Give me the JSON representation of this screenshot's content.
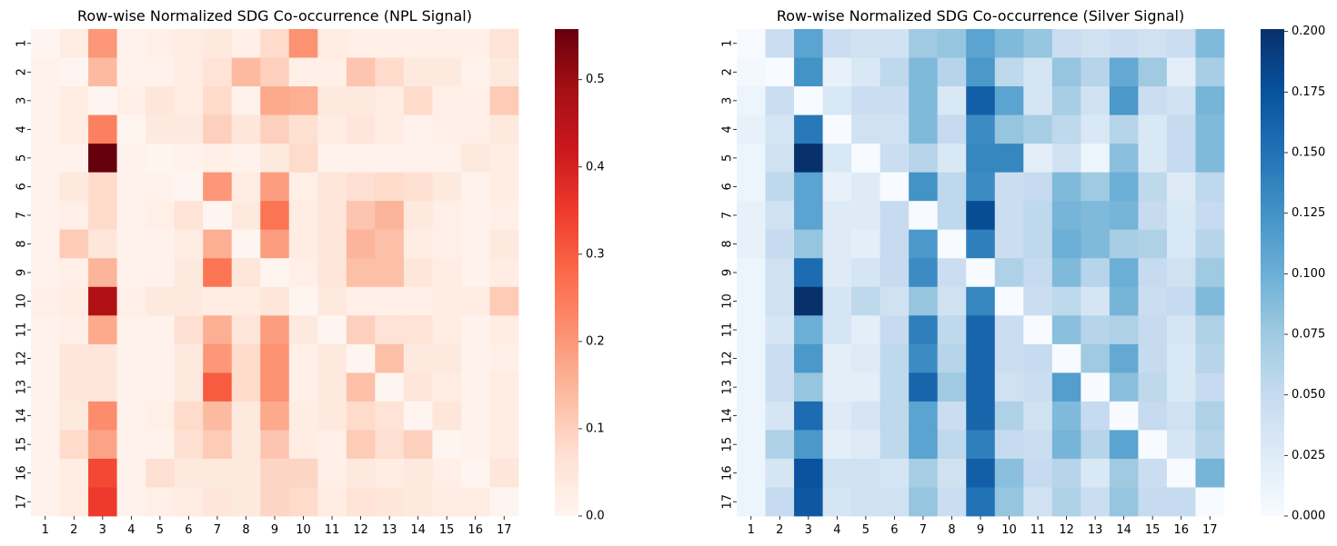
{
  "chart_data": [
    {
      "type": "heatmap",
      "title": "Row-wise Normalized SDG Co-occurrence (NPL Signal)",
      "colormap": "Reds",
      "x_labels": [
        "1",
        "2",
        "3",
        "4",
        "5",
        "6",
        "7",
        "8",
        "9",
        "10",
        "11",
        "12",
        "13",
        "14",
        "15",
        "16",
        "17"
      ],
      "y_labels": [
        "1",
        "2",
        "3",
        "4",
        "5",
        "6",
        "7",
        "8",
        "9",
        "10",
        "11",
        "12",
        "13",
        "14",
        "15",
        "16",
        "17"
      ],
      "vmin": 0.0,
      "vmax": 0.558,
      "colorbar_ticks": [
        0.0,
        0.1,
        0.2,
        0.3,
        0.4,
        0.5
      ],
      "colorbar_tick_labels": [
        "0.0",
        "0.1",
        "0.2",
        "0.3",
        "0.4",
        "0.5"
      ],
      "values": [
        [
          0.0,
          0.03,
          0.2,
          0.01,
          0.02,
          0.03,
          0.04,
          0.02,
          0.08,
          0.21,
          0.03,
          0.02,
          0.02,
          0.02,
          0.02,
          0.02,
          0.06
        ],
        [
          0.01,
          0.0,
          0.14,
          0.01,
          0.01,
          0.03,
          0.06,
          0.14,
          0.1,
          0.02,
          0.02,
          0.12,
          0.08,
          0.04,
          0.04,
          0.01,
          0.04
        ],
        [
          0.01,
          0.03,
          0.0,
          0.02,
          0.05,
          0.03,
          0.08,
          0.01,
          0.17,
          0.16,
          0.04,
          0.04,
          0.03,
          0.08,
          0.02,
          0.02,
          0.11
        ],
        [
          0.01,
          0.03,
          0.24,
          0.0,
          0.04,
          0.04,
          0.1,
          0.05,
          0.1,
          0.07,
          0.03,
          0.05,
          0.03,
          0.01,
          0.02,
          0.02,
          0.04
        ],
        [
          0.01,
          0.01,
          0.558,
          0.01,
          0.0,
          0.01,
          0.02,
          0.01,
          0.04,
          0.08,
          0.01,
          0.01,
          0.01,
          0.01,
          0.01,
          0.04,
          0.03
        ],
        [
          0.01,
          0.04,
          0.08,
          0.01,
          0.01,
          0.0,
          0.2,
          0.03,
          0.19,
          0.02,
          0.05,
          0.07,
          0.08,
          0.07,
          0.04,
          0.01,
          0.03
        ],
        [
          0.01,
          0.02,
          0.08,
          0.01,
          0.02,
          0.06,
          0.0,
          0.04,
          0.26,
          0.03,
          0.05,
          0.12,
          0.15,
          0.04,
          0.02,
          0.01,
          0.02
        ],
        [
          0.01,
          0.11,
          0.05,
          0.01,
          0.01,
          0.03,
          0.16,
          0.0,
          0.19,
          0.03,
          0.05,
          0.15,
          0.13,
          0.03,
          0.02,
          0.01,
          0.04
        ],
        [
          0.01,
          0.02,
          0.15,
          0.01,
          0.01,
          0.04,
          0.26,
          0.05,
          0.0,
          0.02,
          0.05,
          0.13,
          0.13,
          0.05,
          0.03,
          0.01,
          0.03
        ],
        [
          0.02,
          0.03,
          0.47,
          0.02,
          0.04,
          0.04,
          0.03,
          0.03,
          0.05,
          0.0,
          0.04,
          0.02,
          0.02,
          0.02,
          0.03,
          0.03,
          0.11
        ],
        [
          0.01,
          0.02,
          0.17,
          0.01,
          0.01,
          0.07,
          0.16,
          0.05,
          0.19,
          0.04,
          0.0,
          0.1,
          0.06,
          0.06,
          0.03,
          0.01,
          0.03
        ],
        [
          0.01,
          0.05,
          0.05,
          0.01,
          0.01,
          0.04,
          0.2,
          0.08,
          0.21,
          0.02,
          0.04,
          0.0,
          0.13,
          0.04,
          0.04,
          0.01,
          0.02
        ],
        [
          0.01,
          0.05,
          0.05,
          0.01,
          0.01,
          0.04,
          0.3,
          0.08,
          0.21,
          0.02,
          0.04,
          0.13,
          0.0,
          0.05,
          0.03,
          0.01,
          0.03
        ],
        [
          0.01,
          0.04,
          0.22,
          0.01,
          0.02,
          0.08,
          0.14,
          0.04,
          0.17,
          0.03,
          0.04,
          0.08,
          0.06,
          0.0,
          0.05,
          0.01,
          0.03
        ],
        [
          0.01,
          0.08,
          0.18,
          0.01,
          0.01,
          0.07,
          0.11,
          0.04,
          0.12,
          0.03,
          0.02,
          0.11,
          0.07,
          0.1,
          0.0,
          0.01,
          0.03
        ],
        [
          0.01,
          0.03,
          0.33,
          0.01,
          0.07,
          0.04,
          0.04,
          0.04,
          0.09,
          0.09,
          0.02,
          0.04,
          0.03,
          0.04,
          0.02,
          0.0,
          0.05
        ],
        [
          0.01,
          0.03,
          0.35,
          0.01,
          0.02,
          0.03,
          0.05,
          0.04,
          0.09,
          0.08,
          0.03,
          0.06,
          0.05,
          0.04,
          0.03,
          0.03,
          0.0
        ]
      ]
    },
    {
      "type": "heatmap",
      "title": "Row-wise Normalized SDG Co-occurrence (Silver Signal)",
      "colormap": "Blues",
      "x_labels": [
        "1",
        "2",
        "3",
        "4",
        "5",
        "6",
        "7",
        "8",
        "9",
        "10",
        "11",
        "12",
        "13",
        "14",
        "15",
        "16",
        "17"
      ],
      "y_labels": [
        "1",
        "2",
        "3",
        "4",
        "5",
        "6",
        "7",
        "8",
        "9",
        "10",
        "11",
        "12",
        "13",
        "14",
        "15",
        "16",
        "17"
      ],
      "vmin": 0.0,
      "vmax": 0.201,
      "colorbar_ticks": [
        0.0,
        0.025,
        0.05,
        0.075,
        0.1,
        0.125,
        0.15,
        0.175,
        0.2
      ],
      "colorbar_tick_labels": [
        "0.000",
        "0.025",
        "0.050",
        "0.075",
        "0.100",
        "0.125",
        "0.150",
        "0.175",
        "0.200"
      ],
      "values": [
        [
          0.0,
          0.045,
          0.11,
          0.045,
          0.04,
          0.04,
          0.075,
          0.08,
          0.11,
          0.09,
          0.08,
          0.045,
          0.04,
          0.045,
          0.04,
          0.045,
          0.09
        ],
        [
          0.005,
          0.0,
          0.125,
          0.015,
          0.03,
          0.055,
          0.09,
          0.06,
          0.12,
          0.055,
          0.035,
          0.08,
          0.06,
          0.105,
          0.075,
          0.02,
          0.07
        ],
        [
          0.01,
          0.045,
          0.0,
          0.03,
          0.045,
          0.045,
          0.09,
          0.03,
          0.165,
          0.11,
          0.035,
          0.07,
          0.04,
          0.12,
          0.045,
          0.04,
          0.095
        ],
        [
          0.015,
          0.035,
          0.145,
          0.0,
          0.04,
          0.04,
          0.09,
          0.05,
          0.13,
          0.08,
          0.07,
          0.055,
          0.03,
          0.06,
          0.03,
          0.05,
          0.09
        ],
        [
          0.01,
          0.04,
          0.201,
          0.03,
          0.0,
          0.045,
          0.06,
          0.03,
          0.135,
          0.135,
          0.02,
          0.04,
          0.01,
          0.085,
          0.03,
          0.05,
          0.09
        ],
        [
          0.01,
          0.055,
          0.11,
          0.015,
          0.025,
          0.0,
          0.125,
          0.055,
          0.13,
          0.045,
          0.05,
          0.09,
          0.075,
          0.1,
          0.055,
          0.025,
          0.055
        ],
        [
          0.015,
          0.04,
          0.11,
          0.025,
          0.025,
          0.05,
          0.0,
          0.055,
          0.18,
          0.045,
          0.055,
          0.095,
          0.09,
          0.095,
          0.05,
          0.03,
          0.05
        ],
        [
          0.015,
          0.05,
          0.08,
          0.025,
          0.02,
          0.05,
          0.12,
          0.0,
          0.14,
          0.045,
          0.055,
          0.1,
          0.09,
          0.07,
          0.065,
          0.03,
          0.06
        ],
        [
          0.01,
          0.04,
          0.155,
          0.025,
          0.035,
          0.05,
          0.13,
          0.045,
          0.0,
          0.065,
          0.05,
          0.09,
          0.06,
          0.1,
          0.05,
          0.04,
          0.075
        ],
        [
          0.01,
          0.04,
          0.201,
          0.035,
          0.055,
          0.04,
          0.08,
          0.04,
          0.135,
          0.0,
          0.045,
          0.055,
          0.035,
          0.095,
          0.045,
          0.05,
          0.09
        ],
        [
          0.01,
          0.035,
          0.1,
          0.035,
          0.02,
          0.05,
          0.14,
          0.055,
          0.16,
          0.045,
          0.0,
          0.085,
          0.06,
          0.065,
          0.05,
          0.035,
          0.065
        ],
        [
          0.01,
          0.045,
          0.12,
          0.02,
          0.025,
          0.055,
          0.13,
          0.06,
          0.16,
          0.045,
          0.05,
          0.0,
          0.075,
          0.105,
          0.05,
          0.03,
          0.06
        ],
        [
          0.01,
          0.045,
          0.08,
          0.02,
          0.02,
          0.055,
          0.16,
          0.075,
          0.16,
          0.04,
          0.045,
          0.115,
          0.0,
          0.085,
          0.055,
          0.03,
          0.05
        ],
        [
          0.01,
          0.035,
          0.155,
          0.025,
          0.035,
          0.055,
          0.11,
          0.045,
          0.16,
          0.065,
          0.04,
          0.09,
          0.05,
          0.0,
          0.05,
          0.04,
          0.065
        ],
        [
          0.01,
          0.065,
          0.12,
          0.02,
          0.025,
          0.055,
          0.11,
          0.055,
          0.14,
          0.05,
          0.045,
          0.095,
          0.06,
          0.11,
          0.0,
          0.035,
          0.06
        ],
        [
          0.01,
          0.035,
          0.175,
          0.04,
          0.04,
          0.035,
          0.07,
          0.04,
          0.165,
          0.085,
          0.05,
          0.06,
          0.03,
          0.075,
          0.045,
          0.0,
          0.095
        ],
        [
          0.01,
          0.05,
          0.17,
          0.035,
          0.04,
          0.04,
          0.08,
          0.045,
          0.15,
          0.08,
          0.04,
          0.065,
          0.045,
          0.08,
          0.05,
          0.05,
          0.0
        ]
      ]
    }
  ]
}
